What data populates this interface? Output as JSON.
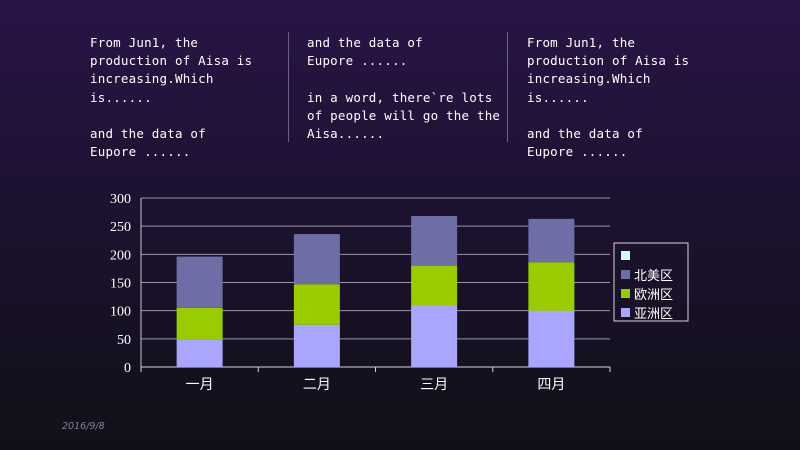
{
  "notes": [
    "From Jun1, the\nproduction  of Aisa is\nincreasing.Which is......\n\nand the data of\nEupore ......",
    "and the data of\nEupore ......\n\nin a word, there`re lots\nof people will go the the\nAisa......",
    "From Jun1, the\nproduction  of Aisa is\nincreasing.Which is......\n\nand the data of\nEupore ......"
  ],
  "footer": {
    "date": "2016/9/8"
  },
  "chart_data": {
    "type": "bar",
    "stacked": true,
    "categories": [
      "一月",
      "二月",
      "三月",
      "四月"
    ],
    "series": [
      {
        "name": "亚洲区",
        "values": [
          48,
          75,
          110,
          100
        ],
        "color": "#a9a6ff"
      },
      {
        "name": "欧洲区",
        "values": [
          57,
          72,
          70,
          86
        ],
        "color": "#99cc00"
      },
      {
        "name": "北美区",
        "values": [
          91,
          89,
          88,
          77
        ],
        "color": "#6e6ea6"
      }
    ],
    "legend_extra_marker": {
      "color": "#d6fff8"
    },
    "ylim": [
      0,
      300
    ],
    "yticks": [
      0,
      50,
      100,
      150,
      200,
      250,
      300
    ],
    "grid": true,
    "legend_position": "right",
    "title": "",
    "xlabel": "",
    "ylabel": ""
  }
}
